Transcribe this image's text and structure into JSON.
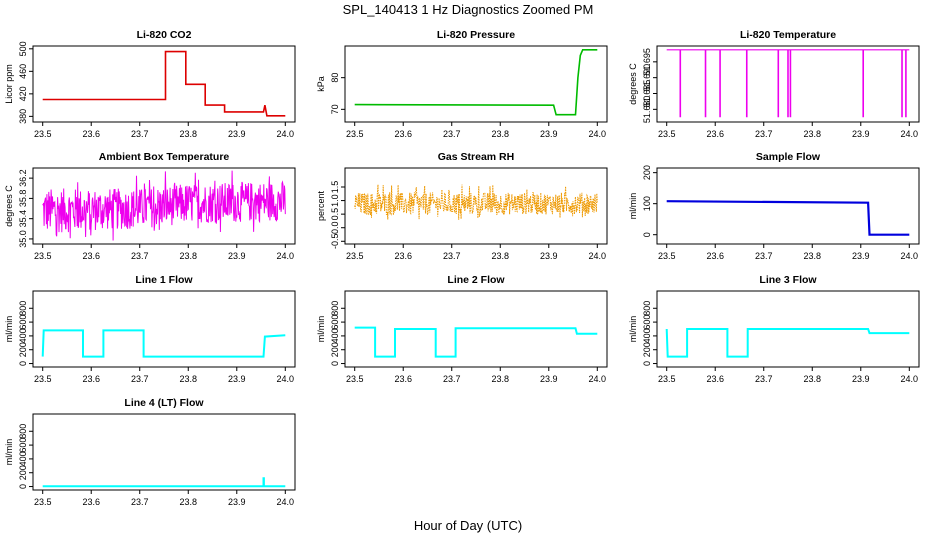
{
  "title": "SPL_140413 1 Hz Diagnostics Zoomed PM",
  "x_caption": "Hour of Day (UTC)",
  "chart_data": [
    {
      "type": "line",
      "title": "Li-820 CO2",
      "ylabel": "Licor ppm",
      "color": "#dd0000",
      "xlim": [
        23.48,
        24.02
      ],
      "ylim": [
        370,
        505
      ],
      "xticks": [
        23.5,
        23.6,
        23.7,
        23.8,
        23.9,
        24.0
      ],
      "yticks": [
        380,
        420,
        460,
        500
      ],
      "series": [
        {
          "x": [
            23.5,
            23.753,
            23.753,
            23.795,
            23.795,
            23.835,
            23.835,
            23.875,
            23.875,
            23.955,
            23.958,
            23.962,
            23.968,
            24.0
          ],
          "y": [
            410,
            410,
            495,
            495,
            437,
            437,
            400,
            400,
            388,
            388,
            400,
            381,
            381,
            381
          ]
        }
      ]
    },
    {
      "type": "line",
      "title": "Li-820 Pressure",
      "ylabel": "kPa",
      "color": "#00bb00",
      "xlim": [
        23.48,
        24.02
      ],
      "ylim": [
        66,
        90
      ],
      "xticks": [
        23.5,
        23.6,
        23.7,
        23.8,
        23.9,
        24.0
      ],
      "yticks": [
        70,
        80
      ],
      "series": [
        {
          "x": [
            23.5,
            23.91,
            23.915,
            23.955,
            23.96,
            23.965,
            23.97,
            24.0
          ],
          "y": [
            71.5,
            71.3,
            68.3,
            68.3,
            80,
            87,
            88.8,
            88.8
          ]
        }
      ]
    },
    {
      "type": "line",
      "title": "Li-820 Temperature",
      "ylabel": "degrees C",
      "color": "#ee00ee",
      "xlim": [
        23.48,
        24.02
      ],
      "ylim": [
        51.676,
        51.7
      ],
      "xticks": [
        23.5,
        23.6,
        23.7,
        23.8,
        23.9,
        24.0
      ],
      "yticks": [
        51.68,
        51.685,
        51.69,
        51.695
      ],
      "tick_labels": [
        "51.680",
        "51.685",
        "51.690",
        "51.695"
      ],
      "baseline": 51.6988,
      "spikes": [
        23.528,
        23.58,
        23.61,
        23.665,
        23.73,
        23.75,
        23.755,
        23.905,
        23.985,
        23.993
      ],
      "spike_min": 51.6775
    },
    {
      "type": "noise",
      "title": "Ambient Box Temperature",
      "ylabel": "degrees C",
      "color": "#ee00ee",
      "xlim": [
        23.48,
        24.02
      ],
      "ylim": [
        34.9,
        36.4
      ],
      "xticks": [
        23.5,
        23.6,
        23.7,
        23.8,
        23.9,
        24.0
      ],
      "yticks": [
        35.0,
        35.4,
        35.8,
        36.2
      ],
      "tick_labels": [
        "35.0",
        "35.4",
        "35.8",
        "36.2"
      ],
      "band": {
        "x": [
          23.5,
          23.7,
          23.8,
          24.0
        ],
        "lo": [
          35.1,
          35.2,
          35.3,
          35.35
        ],
        "hi": [
          36.0,
          36.0,
          36.1,
          36.15
        ]
      }
    },
    {
      "type": "noise",
      "title": "Gas Stream RH",
      "ylabel": "percent",
      "color": "#ee9900",
      "xlim": [
        23.48,
        24.02
      ],
      "ylim": [
        -0.6,
        2.2
      ],
      "xticks": [
        23.5,
        23.6,
        23.7,
        23.8,
        23.9,
        24.0
      ],
      "yticks": [
        -0.5,
        0.0,
        0.5,
        1.0,
        1.5
      ],
      "tick_labels": [
        "-0.5",
        "0.0",
        "0.5",
        "1.0",
        "1.5"
      ],
      "band": {
        "x": [
          23.5,
          24.0
        ],
        "lo": [
          0.45,
          0.5
        ],
        "hi": [
          1.3,
          1.3
        ]
      }
    },
    {
      "type": "line",
      "title": "Sample Flow",
      "ylabel": "ml/min",
      "color": "#0000dd",
      "xlim": [
        23.48,
        24.02
      ],
      "ylim": [
        -30,
        215
      ],
      "xticks": [
        23.5,
        23.6,
        23.7,
        23.8,
        23.9,
        24.0
      ],
      "yticks": [
        0,
        100,
        200
      ],
      "series": [
        {
          "x": [
            23.5,
            23.915,
            23.918,
            24.0
          ],
          "y": [
            108,
            103,
            0,
            0
          ]
        }
      ]
    },
    {
      "type": "line",
      "title": "Line 1 Flow",
      "ylabel": "ml/min",
      "color": "#00ffff",
      "xlim": [
        23.48,
        24.02
      ],
      "ylim": [
        -50,
        1050
      ],
      "xticks": [
        23.5,
        23.6,
        23.7,
        23.8,
        23.9,
        24.0
      ],
      "yticks": [
        0,
        200,
        400,
        600,
        800
      ],
      "series": [
        {
          "x": [
            23.5,
            23.502,
            23.583,
            23.583,
            23.625,
            23.625,
            23.708,
            23.708,
            23.955,
            23.958,
            24.0
          ],
          "y": [
            100,
            480,
            480,
            100,
            100,
            480,
            480,
            100,
            100,
            390,
            410
          ]
        }
      ]
    },
    {
      "type": "line",
      "title": "Line 2 Flow",
      "ylabel": "ml/min",
      "color": "#00ffff",
      "xlim": [
        23.48,
        24.02
      ],
      "ylim": [
        -50,
        1050
      ],
      "xticks": [
        23.5,
        23.6,
        23.7,
        23.8,
        23.9,
        24.0
      ],
      "yticks": [
        0,
        200,
        400,
        600,
        800
      ],
      "series": [
        {
          "x": [
            23.5,
            23.542,
            23.542,
            23.583,
            23.583,
            23.667,
            23.667,
            23.708,
            23.708,
            23.955,
            23.958,
            24.0
          ],
          "y": [
            520,
            520,
            100,
            100,
            500,
            500,
            100,
            100,
            510,
            510,
            430,
            430
          ]
        }
      ]
    },
    {
      "type": "line",
      "title": "Line 3 Flow",
      "ylabel": "ml/min",
      "color": "#00ffff",
      "xlim": [
        23.48,
        24.02
      ],
      "ylim": [
        -50,
        1050
      ],
      "xticks": [
        23.5,
        23.6,
        23.7,
        23.8,
        23.9,
        24.0
      ],
      "yticks": [
        0,
        200,
        400,
        600,
        800
      ],
      "series": [
        {
          "x": [
            23.5,
            23.502,
            23.542,
            23.542,
            23.625,
            23.625,
            23.667,
            23.667,
            23.915,
            23.918,
            24.0
          ],
          "y": [
            500,
            100,
            100,
            500,
            500,
            100,
            100,
            500,
            500,
            440,
            440
          ]
        }
      ]
    },
    {
      "type": "line",
      "title": "Line 4 (LT) Flow",
      "ylabel": "ml/min",
      "color": "#00ffff",
      "xlim": [
        23.48,
        24.02
      ],
      "ylim": [
        -50,
        1050
      ],
      "xticks": [
        23.5,
        23.6,
        23.7,
        23.8,
        23.9,
        24.0
      ],
      "yticks": [
        0,
        200,
        400,
        600,
        800
      ],
      "series": [
        {
          "x": [
            23.5,
            23.955,
            23.955,
            23.956,
            23.956,
            24.0
          ],
          "y": [
            5,
            5,
            120,
            120,
            5,
            5
          ]
        }
      ]
    }
  ]
}
